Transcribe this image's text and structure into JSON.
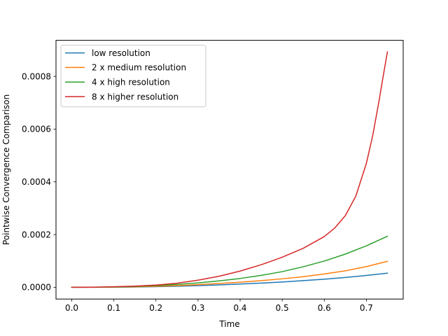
{
  "chart_data": {
    "type": "line",
    "title": "",
    "xlabel": "Time",
    "ylabel": "Pointwise Convergence Comparison",
    "xlim": [
      -0.0375,
      0.7875
    ],
    "ylim": [
      -4.46e-05,
      0.0009368
    ],
    "xticks": [
      0.0,
      0.1,
      0.2,
      0.3,
      0.4,
      0.5,
      0.6,
      0.7
    ],
    "xtick_labels": [
      "0.0",
      "0.1",
      "0.2",
      "0.3",
      "0.4",
      "0.5",
      "0.6",
      "0.7"
    ],
    "yticks": [
      0.0,
      0.0002,
      0.0004,
      0.0006,
      0.0008
    ],
    "ytick_labels": [
      "0.0000",
      "0.0002",
      "0.0004",
      "0.0006",
      "0.0008"
    ],
    "grid": false,
    "legend_position": "top-left",
    "series": [
      {
        "name": "low resolution",
        "color": "#1f77b4",
        "x": [
          0.0,
          0.05,
          0.1,
          0.15,
          0.2,
          0.25,
          0.3,
          0.35,
          0.4,
          0.45,
          0.5,
          0.55,
          0.6,
          0.65,
          0.7,
          0.75
        ],
        "y": [
          0.0,
          1e-07,
          4e-07,
          1.1e-06,
          2.4e-06,
          4.1e-06,
          6.4e-06,
          9.1e-06,
          1.24e-05,
          1.59e-05,
          1.99e-05,
          2.52e-05,
          3.06e-05,
          3.71e-05,
          4.48e-05,
          5.35e-05
        ]
      },
      {
        "name": "2 x medium resolution",
        "color": "#ff7f0e",
        "x": [
          0.0,
          0.05,
          0.1,
          0.15,
          0.2,
          0.25,
          0.3,
          0.35,
          0.4,
          0.45,
          0.5,
          0.55,
          0.6,
          0.65,
          0.7,
          0.75
        ],
        "y": [
          0.0,
          2e-07,
          8e-07,
          1.9e-06,
          3.7e-06,
          6.4e-06,
          9.9e-06,
          1.42e-05,
          1.93e-05,
          2.52e-05,
          3.21e-05,
          4.02e-05,
          5.05e-05,
          6.25e-05,
          7.85e-05,
          9.85e-05
        ]
      },
      {
        "name": "4 x high resolution",
        "color": "#2ca02c",
        "x": [
          0.0,
          0.05,
          0.1,
          0.15,
          0.2,
          0.25,
          0.3,
          0.35,
          0.4,
          0.45,
          0.5,
          0.55,
          0.6,
          0.65,
          0.7,
          0.75
        ],
        "y": [
          0.0,
          3e-07,
          1.2e-06,
          3.2e-06,
          6.3e-06,
          1.08e-05,
          1.68e-05,
          2.44e-05,
          3.34e-05,
          4.51e-05,
          5.93e-05,
          7.79e-05,
          9.95e-05,
          0.0001259,
          0.0001572,
          0.0001935
        ]
      },
      {
        "name": "8 x higher resolution",
        "color": "#d62728",
        "x": [
          0.0,
          0.05,
          0.1,
          0.15,
          0.2,
          0.25,
          0.3,
          0.35,
          0.4,
          0.45,
          0.5,
          0.55,
          0.6,
          0.625,
          0.65,
          0.675,
          0.7,
          0.715,
          0.73,
          0.74,
          0.75
        ],
        "y": [
          0.0,
          5e-07,
          2e-06,
          4.5e-06,
          8.5e-06,
          1.55e-05,
          2.7e-05,
          4.2e-05,
          6.15e-05,
          8.55e-05,
          0.000114,
          0.000148,
          0.0001925,
          0.000225,
          0.000272,
          0.000346,
          0.00047,
          0.000575,
          0.000706,
          0.000801,
          0.000893
        ]
      }
    ]
  }
}
